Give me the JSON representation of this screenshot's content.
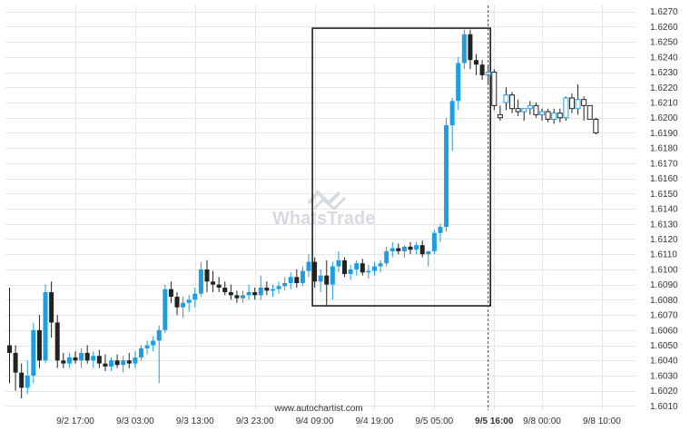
{
  "chart_data": {
    "type": "candlestick",
    "y_axis_labels": [
      "1.6270",
      "1.6260",
      "1.6250",
      "1.6240",
      "1.6230",
      "1.6220",
      "1.6210",
      "1.6200",
      "1.6190",
      "1.6180",
      "1.6170",
      "1.6160",
      "1.6150",
      "1.6140",
      "1.6130",
      "1.6120",
      "1.6110",
      "1.6100",
      "1.6090",
      "1.6080",
      "1.6070",
      "1.6060",
      "1.6050",
      "1.6040",
      "1.6030",
      "1.6020",
      "1.6010"
    ],
    "y_axis_values": [
      1.627,
      1.626,
      1.625,
      1.624,
      1.623,
      1.622,
      1.621,
      1.62,
      1.619,
      1.618,
      1.617,
      1.616,
      1.615,
      1.614,
      1.613,
      1.612,
      1.611,
      1.61,
      1.609,
      1.608,
      1.607,
      1.606,
      1.605,
      1.604,
      1.603,
      1.602,
      1.601
    ],
    "ylim": [
      1.6005,
      1.6274
    ],
    "x_tick_labels": [
      "9/2 17:00",
      "9/3 03:00",
      "9/3 13:00",
      "9/3 23:00",
      "9/4 09:00",
      "9/4 19:00",
      "9/5 05:00",
      "9/5 16:00",
      "9/8 00:00",
      "9/8 10:00"
    ],
    "x_tick_bars": [
      11,
      21,
      31,
      41,
      51,
      61,
      71,
      81,
      89,
      99
    ],
    "highlighted_x_label": "9/5 16:00",
    "grid": true,
    "colors": {
      "bull": "#1e9de0",
      "bear": "#222222",
      "frame": "#111111",
      "grid": "#e6e6e6"
    },
    "candles": [
      {
        "o": 1.605,
        "h": 1.6088,
        "l": 1.6025,
        "c": 1.6045
      },
      {
        "o": 1.6045,
        "h": 1.605,
        "l": 1.602,
        "c": 1.6032
      },
      {
        "o": 1.6032,
        "h": 1.6038,
        "l": 1.6015,
        "c": 1.6022
      },
      {
        "o": 1.6022,
        "h": 1.604,
        "l": 1.6018,
        "c": 1.603
      },
      {
        "o": 1.603,
        "h": 1.6065,
        "l": 1.6025,
        "c": 1.606
      },
      {
        "o": 1.606,
        "h": 1.607,
        "l": 1.6035,
        "c": 1.604
      },
      {
        "o": 1.604,
        "h": 1.609,
        "l": 1.6038,
        "c": 1.6085
      },
      {
        "o": 1.6085,
        "h": 1.6092,
        "l": 1.6055,
        "c": 1.6065
      },
      {
        "o": 1.6065,
        "h": 1.607,
        "l": 1.6035,
        "c": 1.604
      },
      {
        "o": 1.604,
        "h": 1.6045,
        "l": 1.6035,
        "c": 1.6038
      },
      {
        "o": 1.6038,
        "h": 1.6045,
        "l": 1.6035,
        "c": 1.6042
      },
      {
        "o": 1.6042,
        "h": 1.6046,
        "l": 1.6038,
        "c": 1.604
      },
      {
        "o": 1.604,
        "h": 1.6048,
        "l": 1.6035,
        "c": 1.6045
      },
      {
        "o": 1.6045,
        "h": 1.605,
        "l": 1.6038,
        "c": 1.604
      },
      {
        "o": 1.604,
        "h": 1.6046,
        "l": 1.6035,
        "c": 1.6043
      },
      {
        "o": 1.6043,
        "h": 1.6047,
        "l": 1.6035,
        "c": 1.6038
      },
      {
        "o": 1.6038,
        "h": 1.6044,
        "l": 1.6033,
        "c": 1.6036
      },
      {
        "o": 1.6036,
        "h": 1.6042,
        "l": 1.6033,
        "c": 1.604
      },
      {
        "o": 1.604,
        "h": 1.6044,
        "l": 1.6035,
        "c": 1.6037
      },
      {
        "o": 1.6037,
        "h": 1.6043,
        "l": 1.6032,
        "c": 1.604
      },
      {
        "o": 1.604,
        "h": 1.6045,
        "l": 1.6035,
        "c": 1.6038
      },
      {
        "o": 1.6038,
        "h": 1.6046,
        "l": 1.6035,
        "c": 1.6042
      },
      {
        "o": 1.6042,
        "h": 1.605,
        "l": 1.604,
        "c": 1.6048
      },
      {
        "o": 1.6048,
        "h": 1.6053,
        "l": 1.6044,
        "c": 1.605
      },
      {
        "o": 1.605,
        "h": 1.6056,
        "l": 1.6046,
        "c": 1.6053
      },
      {
        "o": 1.6053,
        "h": 1.6063,
        "l": 1.6025,
        "c": 1.606
      },
      {
        "o": 1.606,
        "h": 1.609,
        "l": 1.6058,
        "c": 1.6087
      },
      {
        "o": 1.6087,
        "h": 1.6092,
        "l": 1.6078,
        "c": 1.6082
      },
      {
        "o": 1.6082,
        "h": 1.6085,
        "l": 1.607,
        "c": 1.6075
      },
      {
        "o": 1.6075,
        "h": 1.6082,
        "l": 1.6068,
        "c": 1.6078
      },
      {
        "o": 1.6078,
        "h": 1.6083,
        "l": 1.6072,
        "c": 1.608
      },
      {
        "o": 1.608,
        "h": 1.6088,
        "l": 1.6075,
        "c": 1.6084
      },
      {
        "o": 1.6084,
        "h": 1.6105,
        "l": 1.6082,
        "c": 1.61
      },
      {
        "o": 1.61,
        "h": 1.6106,
        "l": 1.6085,
        "c": 1.6092
      },
      {
        "o": 1.6092,
        "h": 1.6099,
        "l": 1.6085,
        "c": 1.609
      },
      {
        "o": 1.609,
        "h": 1.6095,
        "l": 1.6085,
        "c": 1.6088
      },
      {
        "o": 1.6088,
        "h": 1.6092,
        "l": 1.6083,
        "c": 1.6085
      },
      {
        "o": 1.6085,
        "h": 1.609,
        "l": 1.608,
        "c": 1.6083
      },
      {
        "o": 1.6083,
        "h": 1.6086,
        "l": 1.6078,
        "c": 1.6081
      },
      {
        "o": 1.6081,
        "h": 1.6086,
        "l": 1.6078,
        "c": 1.6083
      },
      {
        "o": 1.6083,
        "h": 1.609,
        "l": 1.608,
        "c": 1.6085
      },
      {
        "o": 1.6085,
        "h": 1.6088,
        "l": 1.608,
        "c": 1.6083
      },
      {
        "o": 1.6083,
        "h": 1.6096,
        "l": 1.608,
        "c": 1.6088
      },
      {
        "o": 1.6088,
        "h": 1.6092,
        "l": 1.6083,
        "c": 1.6086
      },
      {
        "o": 1.6086,
        "h": 1.609,
        "l": 1.6082,
        "c": 1.6087
      },
      {
        "o": 1.6087,
        "h": 1.6092,
        "l": 1.6084,
        "c": 1.6089
      },
      {
        "o": 1.6089,
        "h": 1.6095,
        "l": 1.6086,
        "c": 1.6091
      },
      {
        "o": 1.6091,
        "h": 1.6098,
        "l": 1.6087,
        "c": 1.6095
      },
      {
        "o": 1.6095,
        "h": 1.61,
        "l": 1.6088,
        "c": 1.6091
      },
      {
        "o": 1.6091,
        "h": 1.6102,
        "l": 1.6089,
        "c": 1.6099
      },
      {
        "o": 1.6099,
        "h": 1.611,
        "l": 1.6095,
        "c": 1.6105
      },
      {
        "o": 1.6105,
        "h": 1.6108,
        "l": 1.6088,
        "c": 1.6092
      },
      {
        "o": 1.6092,
        "h": 1.61,
        "l": 1.6085,
        "c": 1.6096
      },
      {
        "o": 1.6096,
        "h": 1.6106,
        "l": 1.6076,
        "c": 1.609
      },
      {
        "o": 1.609,
        "h": 1.6105,
        "l": 1.608,
        "c": 1.6102
      },
      {
        "o": 1.6102,
        "h": 1.6112,
        "l": 1.6098,
        "c": 1.6106
      },
      {
        "o": 1.6106,
        "h": 1.6108,
        "l": 1.6095,
        "c": 1.6097
      },
      {
        "o": 1.6097,
        "h": 1.6103,
        "l": 1.6093,
        "c": 1.61
      },
      {
        "o": 1.61,
        "h": 1.6106,
        "l": 1.6096,
        "c": 1.6104
      },
      {
        "o": 1.6104,
        "h": 1.6107,
        "l": 1.6096,
        "c": 1.6098
      },
      {
        "o": 1.6098,
        "h": 1.6103,
        "l": 1.6094,
        "c": 1.6099
      },
      {
        "o": 1.6099,
        "h": 1.6105,
        "l": 1.6096,
        "c": 1.6102
      },
      {
        "o": 1.6102,
        "h": 1.6106,
        "l": 1.6098,
        "c": 1.6104
      },
      {
        "o": 1.6104,
        "h": 1.6115,
        "l": 1.6102,
        "c": 1.6112
      },
      {
        "o": 1.6112,
        "h": 1.6118,
        "l": 1.6108,
        "c": 1.6114
      },
      {
        "o": 1.6114,
        "h": 1.6117,
        "l": 1.611,
        "c": 1.6112
      },
      {
        "o": 1.6112,
        "h": 1.6116,
        "l": 1.6108,
        "c": 1.6115
      },
      {
        "o": 1.6115,
        "h": 1.6118,
        "l": 1.611,
        "c": 1.6113
      },
      {
        "o": 1.6113,
        "h": 1.6118,
        "l": 1.611,
        "c": 1.6116
      },
      {
        "o": 1.6116,
        "h": 1.6119,
        "l": 1.6108,
        "c": 1.611
      },
      {
        "o": 1.611,
        "h": 1.6112,
        "l": 1.6102,
        "c": 1.6112
      },
      {
        "o": 1.6112,
        "h": 1.6126,
        "l": 1.611,
        "c": 1.6124
      },
      {
        "o": 1.6124,
        "h": 1.613,
        "l": 1.6118,
        "c": 1.6128
      },
      {
        "o": 1.6128,
        "h": 1.62,
        "l": 1.6125,
        "c": 1.6195
      },
      {
        "o": 1.6195,
        "h": 1.6213,
        "l": 1.6178,
        "c": 1.6211
      },
      {
        "o": 1.6211,
        "h": 1.624,
        "l": 1.6205,
        "c": 1.6236
      },
      {
        "o": 1.6236,
        "h": 1.6258,
        "l": 1.6232,
        "c": 1.6255
      },
      {
        "o": 1.6255,
        "h": 1.6258,
        "l": 1.6232,
        "c": 1.6238
      },
      {
        "o": 1.6238,
        "h": 1.6242,
        "l": 1.6228,
        "c": 1.6235
      },
      {
        "o": 1.6235,
        "h": 1.6238,
        "l": 1.6225,
        "c": 1.6228
      },
      {
        "o": 1.6228,
        "h": 1.6235,
        "l": 1.6222,
        "c": 1.623
      },
      {
        "o": 1.623,
        "h": 1.6232,
        "l": 1.6205,
        "c": 1.6208
      },
      {
        "o": 1.6202,
        "h": 1.6208,
        "l": 1.6198,
        "c": 1.62
      },
      {
        "o": 1.621,
        "h": 1.622,
        "l": 1.6205,
        "c": 1.6215
      },
      {
        "o": 1.6215,
        "h": 1.6217,
        "l": 1.6203,
        "c": 1.6206
      },
      {
        "o": 1.6206,
        "h": 1.6212,
        "l": 1.6201,
        "c": 1.6204
      },
      {
        "o": 1.6204,
        "h": 1.6206,
        "l": 1.6198,
        "c": 1.6206
      },
      {
        "o": 1.6206,
        "h": 1.6211,
        "l": 1.6202,
        "c": 1.6208
      },
      {
        "o": 1.6208,
        "h": 1.621,
        "l": 1.62,
        "c": 1.6202
      },
      {
        "o": 1.6202,
        "h": 1.6206,
        "l": 1.6198,
        "c": 1.6204
      },
      {
        "o": 1.6204,
        "h": 1.6206,
        "l": 1.6197,
        "c": 1.6199
      },
      {
        "o": 1.6199,
        "h": 1.6206,
        "l": 1.6196,
        "c": 1.6203
      },
      {
        "o": 1.6203,
        "h": 1.6206,
        "l": 1.6197,
        "c": 1.62
      },
      {
        "o": 1.62,
        "h": 1.6214,
        "l": 1.6198,
        "c": 1.6213
      },
      {
        "o": 1.6213,
        "h": 1.6216,
        "l": 1.6203,
        "c": 1.6206
      },
      {
        "o": 1.6206,
        "h": 1.6222,
        "l": 1.6202,
        "c": 1.6212
      },
      {
        "o": 1.6212,
        "h": 1.6214,
        "l": 1.6198,
        "c": 1.6208
      },
      {
        "o": 1.6208,
        "h": 1.6208,
        "l": 1.6199,
        "c": 1.6199
      },
      {
        "o": 1.6199,
        "h": 1.62,
        "l": 1.6189,
        "c": 1.619
      }
    ],
    "highlight_box": {
      "from_bar": 51,
      "to_bar": 80,
      "top": 1.6259,
      "bottom": 1.6076
    },
    "marker_bar": 80
  },
  "watermark": {
    "text": "WhatsTrade",
    "icon": "whatstrade-logo-icon"
  },
  "footer": {
    "source": "www.autochartist.com"
  }
}
